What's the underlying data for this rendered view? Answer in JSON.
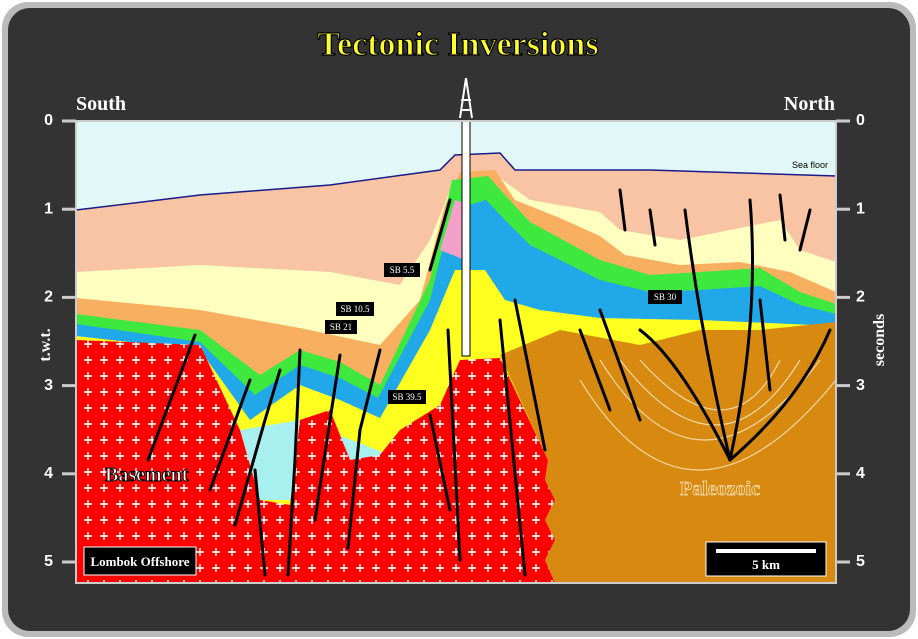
{
  "header": {
    "title": "Tectonic Inversions",
    "left": "South",
    "right": "North"
  },
  "axes": {
    "left_label": "t.w.t.",
    "right_label": "seconds",
    "ticks": [
      0,
      1,
      2,
      3,
      4,
      5
    ]
  },
  "labels": {
    "sea_floor": "Sea floor",
    "sb_5_5": "SB 5.5",
    "sb_10_5": "SB 10.5",
    "sb_21": "SB 21",
    "sb_39_5": "SB 39.5",
    "sb_30": "SB 30",
    "basement": "Basement",
    "paleozoic": "Paleozoic",
    "location": "Lombok Offshore",
    "scale": "5 km"
  }
}
